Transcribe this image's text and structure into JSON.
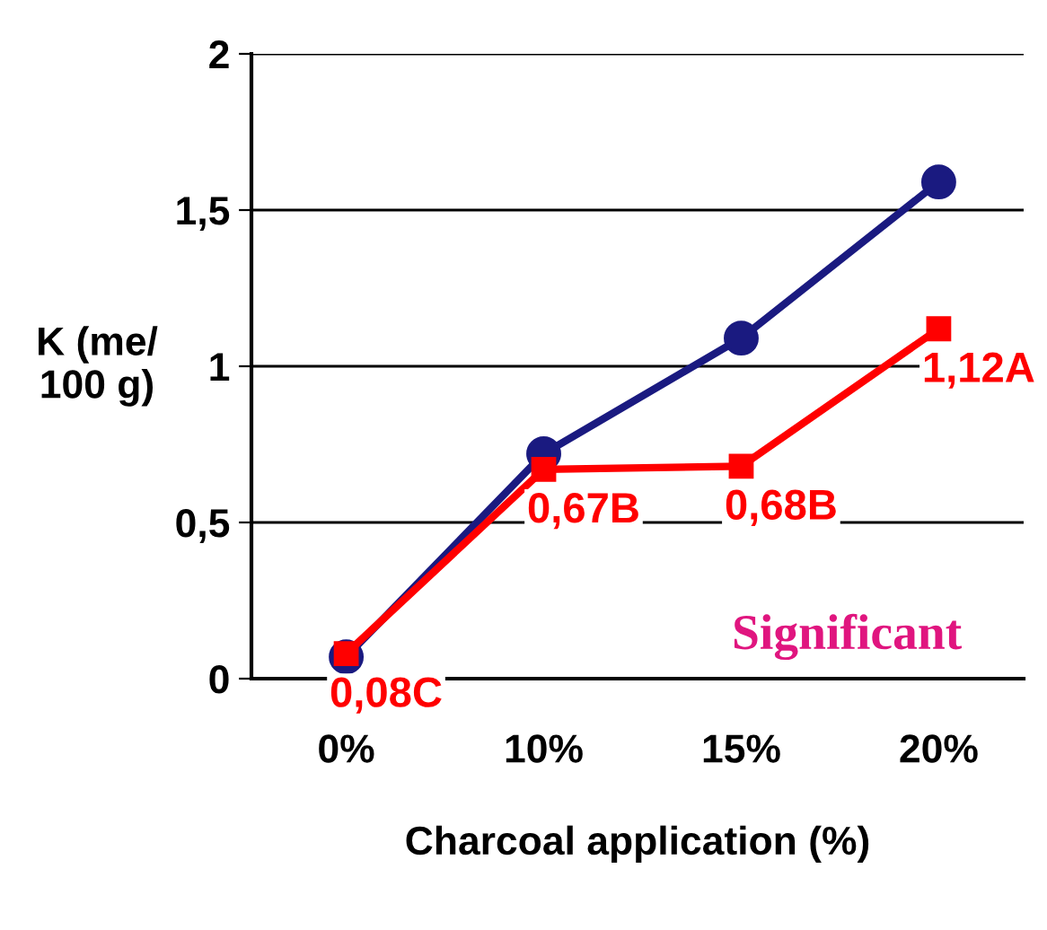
{
  "chart_data": {
    "type": "line",
    "xlabel": "Charcoal application (%)",
    "ylabel": "K (me/\n100 g)",
    "categories": [
      "0%",
      "10%",
      "15%",
      "20%"
    ],
    "series": [
      {
        "color": "#1a1a80",
        "values": [
          0.07,
          0.72,
          1.09,
          1.59
        ],
        "marker": "circle"
      },
      {
        "color": "#ff0000",
        "values": [
          0.08,
          0.67,
          0.68,
          1.12
        ],
        "marker": "square",
        "value_labels": [
          "0,08C",
          "0,67B",
          "0,68B",
          "1,12A"
        ]
      }
    ],
    "ylim": [
      0,
      2
    ],
    "yticks": [
      {
        "value": 0,
        "label": "0"
      },
      {
        "value": 0.5,
        "label": "0,5"
      },
      {
        "value": 1,
        "label": "1"
      },
      {
        "value": 1.5,
        "label": "1,5"
      },
      {
        "value": 2,
        "label": "2"
      }
    ],
    "grid": "y",
    "legend": false,
    "annotations": [
      "Significant"
    ]
  }
}
